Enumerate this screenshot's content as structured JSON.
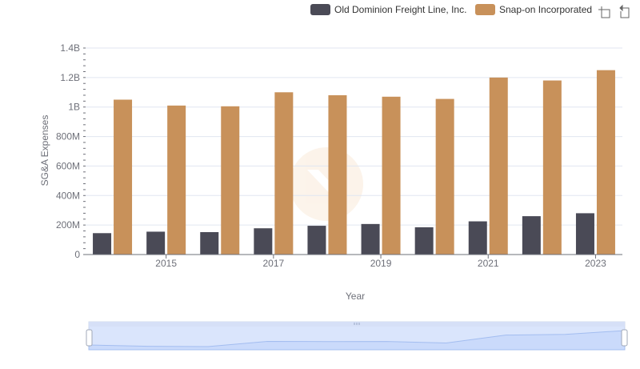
{
  "chart_data": {
    "type": "bar",
    "title": "",
    "xlabel": "Year",
    "ylabel": "SG&A Expenses",
    "x_tick_labels": [
      "2015",
      "2017",
      "2019",
      "2021",
      "2023"
    ],
    "categories": [
      "2014",
      "2015",
      "2016",
      "2017",
      "2018",
      "2019",
      "2020",
      "2021",
      "2022",
      "2023"
    ],
    "series": [
      {
        "name": "Old Dominion Freight Line, Inc.",
        "color": "#4a4a56",
        "values": [
          145000000,
          155000000,
          152000000,
          178000000,
          195000000,
          207000000,
          185000000,
          225000000,
          260000000,
          280000000
        ]
      },
      {
        "name": "Snap-on Incorporated",
        "color": "#c8915a",
        "values": [
          1050000000,
          1010000000,
          1005000000,
          1100000000,
          1080000000,
          1070000000,
          1055000000,
          1200000000,
          1180000000,
          1250000000
        ]
      }
    ],
    "ylim": [
      0,
      1400000000
    ],
    "y_ticks": [
      {
        "value": 0,
        "label": "0"
      },
      {
        "value": 200000000,
        "label": "200M"
      },
      {
        "value": 400000000,
        "label": "400M"
      },
      {
        "value": 600000000,
        "label": "600M"
      },
      {
        "value": 800000000,
        "label": "800M"
      },
      {
        "value": 1000000000,
        "label": "1B"
      },
      {
        "value": 1200000000,
        "label": "1.2B"
      },
      {
        "value": 1400000000,
        "label": "1.4B"
      }
    ],
    "grid": true,
    "legend_position": "top-right"
  },
  "toolbar": {
    "zoom_icon": "zoom-icon",
    "restore_icon": "restore-icon"
  }
}
